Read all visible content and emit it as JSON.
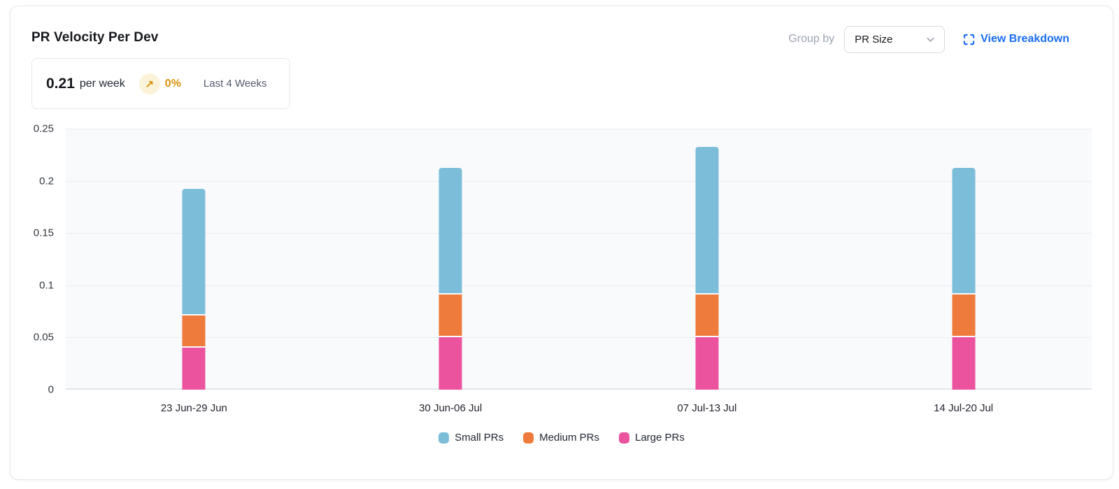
{
  "header": {
    "title": "PR Velocity Per Dev",
    "group_by_label": "Group by",
    "group_by_value": "PR Size",
    "view_breakdown_label": "View Breakdown"
  },
  "summary": {
    "value": "0.21",
    "unit": "per week",
    "trend_icon": "↗",
    "trend_pct": "0%",
    "period": "Last 4 Weeks"
  },
  "icons": {
    "group_by_chevron": "chevron-down-icon",
    "view_breakdown": "expand-icon",
    "trend": "arrow-up-right-icon"
  },
  "colors": {
    "small_prs_blue": "#7cbdd9",
    "medium_prs_orange": "#ee7b3b",
    "large_prs_pink": "#ec539f",
    "link_blue": "#1b6ef3",
    "trend_amber": "#d9940e",
    "plot_background": "#f8fafc"
  },
  "chart_data": {
    "type": "bar",
    "stacked": true,
    "title": "PR Velocity Per Dev",
    "xlabel": "",
    "ylabel": "",
    "ylim": [
      0,
      0.25
    ],
    "y_ticks": [
      "0",
      "0.05",
      "0.1",
      "0.15",
      "0.2",
      "0.25"
    ],
    "grid": true,
    "legend_position": "bottom",
    "categories": [
      "23 Jun-29 Jun",
      "30 Jun-06 Jul",
      "07 Jul-13 Jul",
      "14 Jul-20 Jul"
    ],
    "series": [
      {
        "name": "Small PRs",
        "color": "#7cbdd9",
        "values": [
          0.12,
          0.12,
          0.14,
          0.12
        ]
      },
      {
        "name": "Medium PRs",
        "color": "#ee7b3b",
        "values": [
          0.03,
          0.04,
          0.04,
          0.04
        ]
      },
      {
        "name": "Large PRs",
        "color": "#ec539f",
        "values": [
          0.04,
          0.05,
          0.05,
          0.05
        ]
      }
    ],
    "stack_order_bottom_to_top": [
      "Large PRs",
      "Medium PRs",
      "Small PRs"
    ],
    "totals": [
      0.19,
      0.21,
      0.23,
      0.21
    ]
  }
}
